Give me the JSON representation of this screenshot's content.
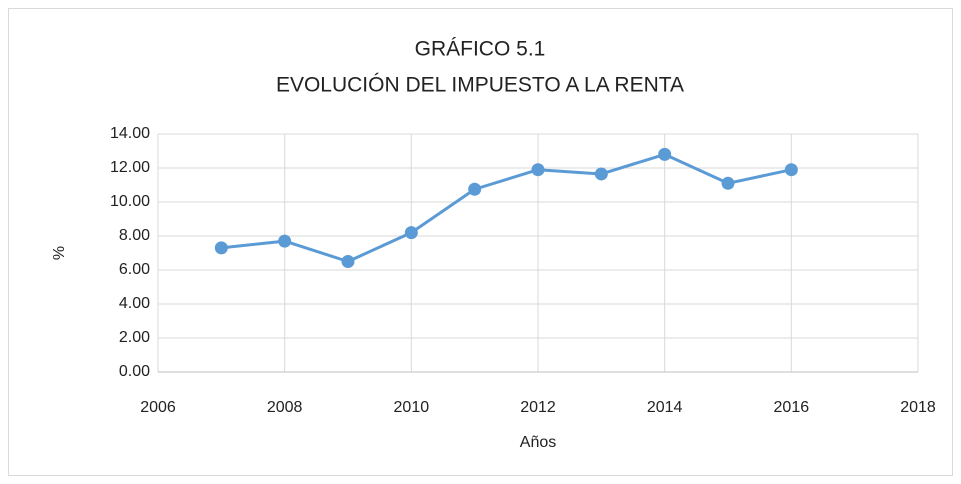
{
  "chart_data": {
    "type": "line",
    "title": "GRÁFICO 5.1",
    "subtitle": "EVOLUCIÓN DEL IMPUESTO A LA RENTA",
    "x_label": "Años",
    "y_label": "%",
    "x": [
      2007,
      2008,
      2009,
      2010,
      2011,
      2012,
      2013,
      2014,
      2015,
      2016
    ],
    "series": [
      {
        "name": "Impuesto a la renta",
        "color": "#5b9bd5",
        "values": [
          7.3,
          7.7,
          6.5,
          8.2,
          10.75,
          11.9,
          11.65,
          12.8,
          11.1,
          11.9
        ]
      }
    ],
    "xlim": [
      2006,
      2018
    ],
    "xticks": [
      2006,
      2008,
      2010,
      2012,
      2014,
      2016,
      2018
    ],
    "ylim": [
      0,
      14
    ],
    "yticks": [
      {
        "value": 0,
        "label": "0.00"
      },
      {
        "value": 2,
        "label": "2.00"
      },
      {
        "value": 4,
        "label": "4.00"
      },
      {
        "value": 6,
        "label": "6.00"
      },
      {
        "value": 8,
        "label": "8.00"
      },
      {
        "value": 10,
        "label": "10.00"
      },
      {
        "value": 12,
        "label": "12.00"
      },
      {
        "value": 14,
        "label": "14.00"
      }
    ],
    "grid": true,
    "legend": false
  }
}
